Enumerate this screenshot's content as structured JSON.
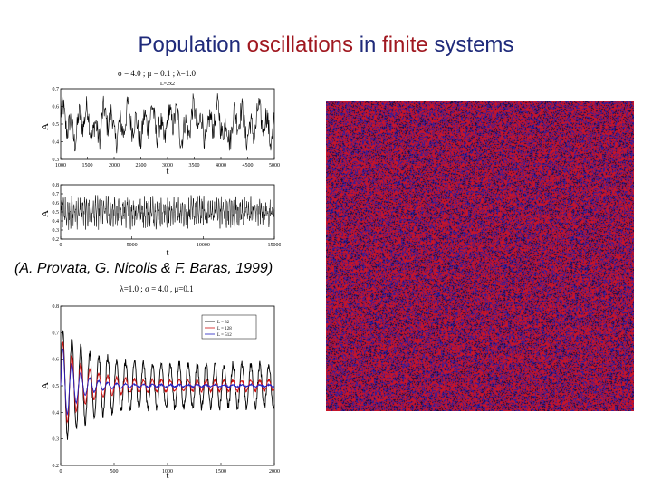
{
  "slide": {
    "title_parts": [
      {
        "text": "Population ",
        "highlight": false
      },
      {
        "text": "oscillations",
        "highlight": true
      },
      {
        "text": " in ",
        "highlight": false
      },
      {
        "text": "finite",
        "highlight": true
      },
      {
        "text": " systems",
        "highlight": false
      }
    ],
    "citation": "(A. Provata, G. Nicolis & F. Baras, 1999)"
  },
  "colors": {
    "title": "#1f2a7a",
    "highlight": "#a01820",
    "sim_red": "#c8102e",
    "sim_blue": "#2b1f9c"
  },
  "chart_data": [
    {
      "type": "line",
      "title": "σ = 4.0 ; μ = 0.1 ; λ=1.0",
      "subtitle": "L=2x2",
      "xlabel": "t",
      "ylabel": "A",
      "xlim": [
        1000,
        5000
      ],
      "ylim": [
        0.3,
        0.7
      ],
      "xticks": [
        "1000",
        "1500",
        "2000",
        "2500",
        "3000",
        "3500",
        "4000",
        "4500",
        "5000"
      ],
      "yticks": [
        "0.7",
        "0.6",
        "0.5",
        "0.4",
        "0.3"
      ]
    },
    {
      "type": "line",
      "title": "",
      "xlabel": "t",
      "ylabel": "A",
      "xlim": [
        0,
        15000
      ],
      "ylim": [
        0.2,
        0.8
      ],
      "xticks": [
        "0",
        "5000",
        "10000",
        "15000"
      ],
      "yticks": [
        "0.8",
        "0.7",
        "0.6",
        "0.5",
        "0.4",
        "0.3",
        "0.2"
      ]
    },
    {
      "type": "line",
      "title": "λ=1.0 ; σ = 4.0 , μ=0.1",
      "xlabel": "t",
      "ylabel": "A",
      "xlim": [
        0,
        2000
      ],
      "ylim": [
        0.2,
        0.8
      ],
      "xticks": [
        "0",
        "500",
        "1000",
        "1500",
        "2000"
      ],
      "yticks": [
        "0.8",
        "0.7",
        "0.6",
        "0.5",
        "0.4",
        "0.3",
        "0.2"
      ],
      "legend": {
        "position": "top-right",
        "entries": [
          "L = 32",
          "L = 128",
          "L = 512"
        ]
      }
    }
  ]
}
